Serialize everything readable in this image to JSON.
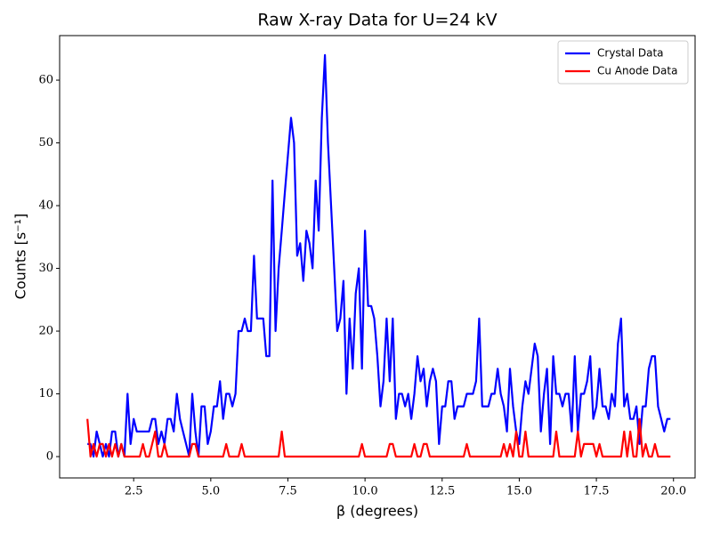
{
  "chart_data": {
    "type": "line",
    "title": "Raw X-ray Data for U=24 kV",
    "xlabel": "β (degrees)",
    "ylabel": "Counts [s⁻¹]",
    "x": [
      1.0,
      1.1,
      1.2,
      1.3,
      1.4,
      1.5,
      1.6,
      1.7,
      1.8,
      1.9,
      2.0,
      2.1,
      2.2,
      2.3,
      2.4,
      2.5,
      2.6,
      2.7,
      2.8,
      2.9,
      3.0,
      3.1,
      3.2,
      3.3,
      3.4,
      3.5,
      3.6,
      3.7,
      3.8,
      3.9,
      4.0,
      4.1,
      4.2,
      4.3,
      4.4,
      4.5,
      4.6,
      4.7,
      4.8,
      4.9,
      5.0,
      5.1,
      5.2,
      5.3,
      5.4,
      5.5,
      5.6,
      5.7,
      5.8,
      5.9,
      6.0,
      6.1,
      6.2,
      6.3,
      6.4,
      6.5,
      6.6,
      6.7,
      6.8,
      6.9,
      7.0,
      7.1,
      7.2,
      7.3,
      7.4,
      7.5,
      7.6,
      7.7,
      7.8,
      7.9,
      8.0,
      8.1,
      8.2,
      8.3,
      8.4,
      8.5,
      8.6,
      8.7,
      8.8,
      8.9,
      9.0,
      9.1,
      9.2,
      9.3,
      9.4,
      9.5,
      9.6,
      9.7,
      9.8,
      9.9,
      10.0,
      10.1,
      10.2,
      10.3,
      10.4,
      10.5,
      10.6,
      10.7,
      10.8,
      10.9,
      11.0,
      11.1,
      11.2,
      11.3,
      11.4,
      11.5,
      11.6,
      11.7,
      11.8,
      11.9,
      12.0,
      12.1,
      12.2,
      12.3,
      12.4,
      12.5,
      12.6,
      12.7,
      12.8,
      12.9,
      13.0,
      13.1,
      13.2,
      13.3,
      13.4,
      13.5,
      13.6,
      13.7,
      13.8,
      13.9,
      14.0,
      14.1,
      14.2,
      14.3,
      14.4,
      14.5,
      14.6,
      14.7,
      14.8,
      14.9,
      15.0,
      15.1,
      15.2,
      15.3,
      15.4,
      15.5,
      15.6,
      15.7,
      15.8,
      15.9,
      16.0,
      16.1,
      16.2,
      16.3,
      16.4,
      16.5,
      16.6,
      16.7,
      16.8,
      16.9,
      17.0,
      17.1,
      17.2,
      17.3,
      17.4,
      17.5,
      17.6,
      17.7,
      17.8,
      17.9,
      18.0,
      18.1,
      18.2,
      18.3,
      18.4,
      18.5,
      18.6,
      18.7,
      18.8,
      18.9,
      19.0,
      19.1,
      19.2,
      19.3,
      19.4,
      19.5,
      19.6,
      19.7,
      19.8,
      19.9
    ],
    "series": [
      {
        "name": "Crystal Data",
        "color": "#0000ff",
        "values": [
          2,
          2,
          0,
          4,
          2,
          0,
          2,
          0,
          4,
          4,
          0,
          2,
          0,
          10,
          2,
          6,
          4,
          4,
          4,
          4,
          4,
          6,
          6,
          2,
          4,
          2,
          6,
          6,
          4,
          10,
          6,
          4,
          2,
          0,
          10,
          4,
          0,
          8,
          8,
          2,
          4,
          8,
          8,
          12,
          6,
          10,
          10,
          8,
          10,
          20,
          20,
          22,
          20,
          20,
          32,
          22,
          22,
          22,
          16,
          16,
          44,
          20,
          30,
          36,
          42,
          48,
          54,
          50,
          32,
          34,
          28,
          36,
          34,
          30,
          44,
          36,
          54,
          64,
          50,
          40,
          30,
          20,
          22,
          28,
          10,
          22,
          14,
          26,
          30,
          14,
          36,
          24,
          24,
          22,
          16,
          8,
          12,
          22,
          12,
          22,
          6,
          10,
          10,
          8,
          10,
          6,
          10,
          16,
          12,
          14,
          8,
          12,
          14,
          12,
          2,
          8,
          8,
          12,
          12,
          6,
          8,
          8,
          8,
          10,
          10,
          10,
          12,
          22,
          8,
          8,
          8,
          10,
          10,
          14,
          10,
          8,
          4,
          14,
          8,
          4,
          2,
          8,
          12,
          10,
          14,
          18,
          16,
          4,
          10,
          14,
          2,
          16,
          10,
          10,
          8,
          10,
          10,
          4,
          16,
          4,
          10,
          10,
          12,
          16,
          6,
          8,
          14,
          8,
          8,
          6,
          10,
          8,
          18,
          22,
          8,
          10,
          6,
          6,
          8,
          2,
          8,
          8,
          14,
          16,
          16,
          8,
          6,
          4,
          6,
          6
        ]
      },
      {
        "name": "Cu Anode Data",
        "color": "#ff0000",
        "values": [
          6,
          0,
          2,
          0,
          2,
          2,
          0,
          2,
          0,
          2,
          0,
          2,
          0,
          0,
          0,
          0,
          0,
          0,
          2,
          0,
          0,
          2,
          4,
          0,
          0,
          2,
          0,
          0,
          0,
          0,
          0,
          0,
          0,
          0,
          2,
          2,
          0,
          0,
          0,
          0,
          0,
          0,
          0,
          0,
          0,
          2,
          0,
          0,
          0,
          0,
          2,
          0,
          0,
          0,
          0,
          0,
          0,
          0,
          0,
          0,
          0,
          0,
          0,
          4,
          0,
          0,
          0,
          0,
          0,
          0,
          0,
          0,
          0,
          0,
          0,
          0,
          0,
          0,
          0,
          0,
          0,
          0,
          0,
          0,
          0,
          0,
          0,
          0,
          0,
          2,
          0,
          0,
          0,
          0,
          0,
          0,
          0,
          0,
          2,
          2,
          0,
          0,
          0,
          0,
          0,
          0,
          2,
          0,
          0,
          2,
          2,
          0,
          0,
          0,
          0,
          0,
          0,
          0,
          0,
          0,
          0,
          0,
          0,
          2,
          0,
          0,
          0,
          0,
          0,
          0,
          0,
          0,
          0,
          0,
          0,
          2,
          0,
          2,
          0,
          4,
          0,
          0,
          4,
          0,
          0,
          0,
          0,
          0,
          0,
          0,
          0,
          0,
          4,
          0,
          0,
          0,
          0,
          0,
          0,
          4,
          0,
          2,
          2,
          2,
          2,
          0,
          2,
          0,
          0,
          0,
          0,
          0,
          0,
          0,
          4,
          0,
          4,
          0,
          0,
          6,
          0,
          2,
          0,
          0,
          2,
          0,
          0,
          0,
          0,
          0
        ]
      }
    ],
    "xlim": [
      0.1,
      20.7
    ],
    "ylim": [
      -3.4,
      67.1
    ],
    "xticks": [
      {
        "value": 2.5,
        "label": "2.5"
      },
      {
        "value": 5,
        "label": "5.0"
      },
      {
        "value": 7.5,
        "label": "7.5"
      },
      {
        "value": 10,
        "label": "10.0"
      },
      {
        "value": 12.5,
        "label": "12.5"
      },
      {
        "value": 15,
        "label": "15.0"
      },
      {
        "value": 17.5,
        "label": "17.5"
      },
      {
        "value": 20,
        "label": "20.0"
      }
    ],
    "yticks": [
      0,
      10,
      20,
      30,
      40,
      50,
      60
    ],
    "legend": "upper right"
  }
}
